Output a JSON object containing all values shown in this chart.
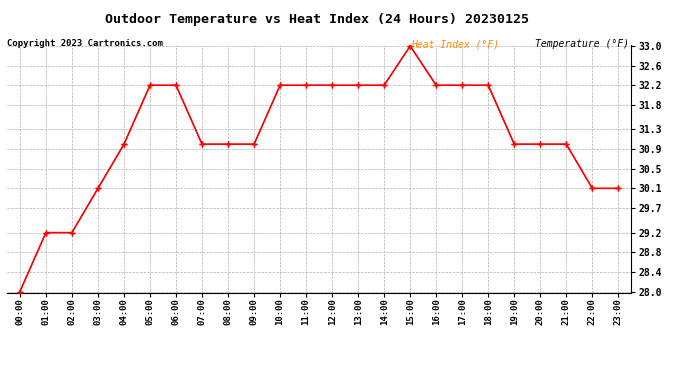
{
  "title": "Outdoor Temperature vs Heat Index (24 Hours) 20230125",
  "copyright": "Copyright 2023 Cartronics.com",
  "legend_heat": "Heat Index (°F)",
  "legend_temp": "Temperature (°F)",
  "x_labels": [
    "00:00",
    "01:00",
    "02:00",
    "03:00",
    "04:00",
    "05:00",
    "06:00",
    "07:00",
    "08:00",
    "09:00",
    "10:00",
    "11:00",
    "12:00",
    "13:00",
    "14:00",
    "15:00",
    "16:00",
    "17:00",
    "18:00",
    "19:00",
    "20:00",
    "21:00",
    "22:00",
    "23:00"
  ],
  "temperature": [
    28.0,
    29.2,
    29.2,
    30.1,
    31.0,
    32.2,
    32.2,
    31.0,
    31.0,
    31.0,
    32.2,
    32.2,
    32.2,
    32.2,
    32.2,
    33.0,
    32.2,
    32.2,
    32.2,
    31.0,
    31.0,
    31.0,
    30.1,
    30.1
  ],
  "heat_index": [
    28.0,
    29.2,
    29.2,
    30.1,
    31.0,
    32.2,
    32.2,
    31.0,
    31.0,
    31.0,
    32.2,
    32.2,
    32.2,
    32.2,
    32.2,
    33.0,
    32.2,
    32.2,
    32.2,
    31.0,
    31.0,
    31.0,
    30.1,
    30.1
  ],
  "ylim_min": 28.0,
  "ylim_max": 33.0,
  "y_ticks": [
    28.0,
    28.4,
    28.8,
    29.2,
    29.7,
    30.1,
    30.5,
    30.9,
    31.3,
    31.8,
    32.2,
    32.6,
    33.0
  ],
  "line_color": "#ff0000",
  "heat_index_color": "#ff8c00",
  "temp_color": "#000000",
  "title_color": "#000000",
  "copyright_color": "#000000",
  "bg_color": "#ffffff",
  "grid_color": "#b0b0b0"
}
